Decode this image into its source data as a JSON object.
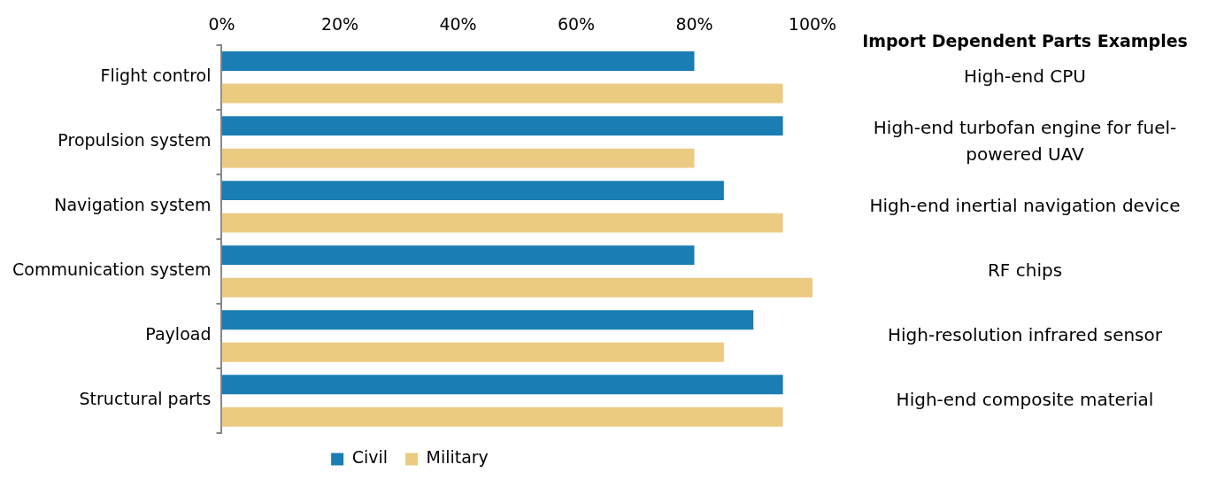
{
  "chart_data": {
    "type": "bar",
    "orientation": "horizontal",
    "categories": [
      "Flight control",
      "Propulsion system",
      "Navigation system",
      "Communication system",
      "Payload",
      "Structural parts"
    ],
    "series": [
      {
        "name": "Civil",
        "color": "#1a7db3",
        "values": [
          80,
          95,
          85,
          80,
          90,
          95
        ]
      },
      {
        "name": "Military",
        "color": "#ebcb82",
        "values": [
          95,
          80,
          95,
          100,
          85,
          95
        ]
      }
    ],
    "xlim": [
      0,
      100
    ],
    "xticks": [
      {
        "value": 0,
        "label": "0%"
      },
      {
        "value": 20,
        "label": "20%"
      },
      {
        "value": 40,
        "label": "40%"
      },
      {
        "value": 60,
        "label": "60%"
      },
      {
        "value": 80,
        "label": "80%"
      },
      {
        "value": 100,
        "label": "100%"
      }
    ],
    "grid": false,
    "legend": "bottom",
    "annotations": [
      "Import Dependent Parts Examples",
      "High-end CPU",
      "High-end turbofan engine for fuel-powered UAV",
      "High-end inertial navigation device",
      "RF chips",
      "High-resolution infrared sensor",
      "High-end composite material"
    ]
  }
}
